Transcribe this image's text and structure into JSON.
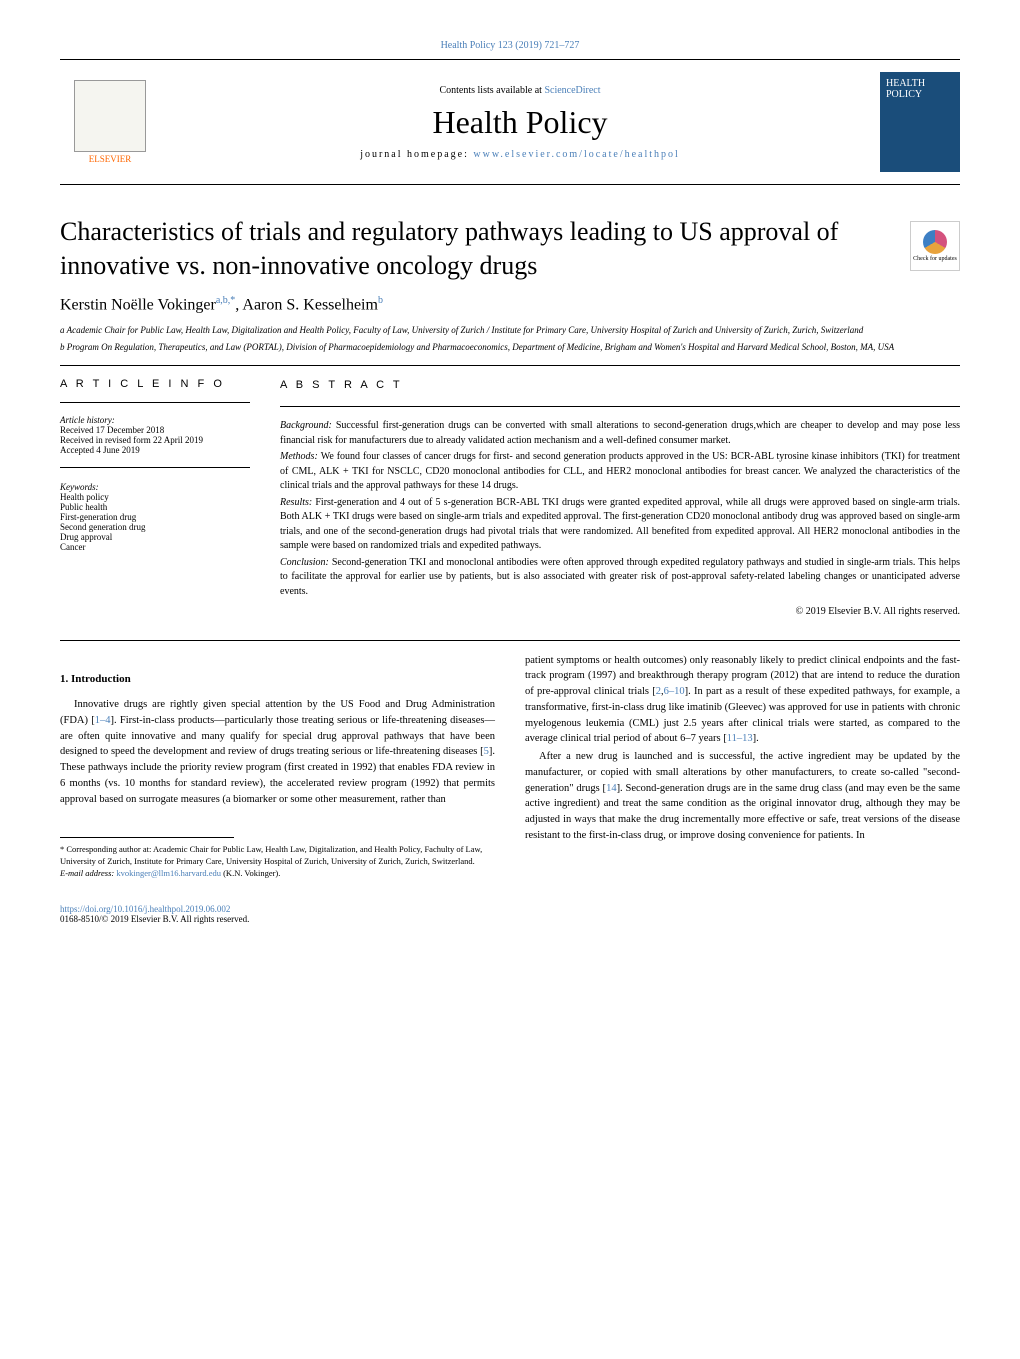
{
  "header": {
    "citation": "Health Policy 123 (2019) 721–727",
    "contents_prefix": "Contents lists available at ",
    "contents_link": "ScienceDirect",
    "journal_title": "Health Policy",
    "homepage_prefix": "journal homepage: ",
    "homepage_url": "www.elsevier.com/locate/healthpol",
    "publisher_name": "ELSEVIER",
    "cover_text": "HEALTH POLICY"
  },
  "article": {
    "title": "Characteristics of trials and regulatory pathways leading to US approval of innovative vs. non-innovative oncology drugs",
    "check_updates": "Check for updates",
    "authors_html": "Kerstin Noëlle Vokinger",
    "author1_affil": "a,b,",
    "author1_corr": "*",
    "author2": ", Aaron S. Kesselheim",
    "author2_affil": "b",
    "affiliation_a": "a Academic Chair for Public Law, Health Law, Digitalization and Health Policy, Faculty of Law, University of Zurich / Institute for Primary Care, University Hospital of Zurich and University of Zurich, Zurich, Switzerland",
    "affiliation_b": "b Program On Regulation, Therapeutics, and Law (PORTAL), Division of Pharmacoepidemiology and Pharmacoeconomics, Department of Medicine, Brigham and Women's Hospital and Harvard Medical School, Boston, MA, USA"
  },
  "info": {
    "heading": "A R T I C L E   I N F O",
    "history_label": "Article history:",
    "received": "Received 17 December 2018",
    "revised": "Received in revised form 22 April 2019",
    "accepted": "Accepted 4 June 2019",
    "keywords_label": "Keywords:",
    "keywords": [
      "Health policy",
      "Public health",
      "First-generation drug",
      "Second generation drug",
      "Drug approval",
      "Cancer"
    ]
  },
  "abstract": {
    "heading": "A B S T R A C T",
    "background_label": "Background: ",
    "background": "Successful first-generation drugs can be converted with small alterations to second-generation drugs,which are cheaper to develop and may pose less financial risk for manufacturers due to already validated action mechanism and a well-defined consumer market.",
    "methods_label": "Methods: ",
    "methods": "We found four classes of cancer drugs for first- and second generation products approved in the US: BCR-ABL tyrosine kinase inhibitors (TKI) for treatment of CML, ALK + TKI for NSCLC, CD20 monoclonal antibodies for CLL, and HER2 monoclonal antibodies for breast cancer. We analyzed the characteristics of the clinical trials and the approval pathways for these 14 drugs.",
    "results_label": "Results: ",
    "results": "First-generation and 4 out of 5 s-generation BCR-ABL TKI drugs were granted expedited approval, while all drugs were approved based on single-arm trials. Both ALK + TKI drugs were based on single-arm trials and expedited approval. The first-generation CD20 monoclonal antibody drug was approved based on single-arm trials, and one of the second-generation drugs had pivotal trials that were randomized. All benefited from expedited approval. All HER2 monoclonal antibodies in the sample were based on randomized trials and expedited pathways.",
    "conclusion_label": "Conclusion: ",
    "conclusion": "Second-generation TKI and monoclonal antibodies were often approved through expedited regulatory pathways and studied in single-arm trials. This helps to facilitate the approval for earlier use by patients, but is also associated with greater risk of post-approval safety-related labeling changes or unanticipated adverse events.",
    "copyright": "© 2019 Elsevier B.V. All rights reserved."
  },
  "body": {
    "intro_heading": "1.  Introduction",
    "col1_p1a": "Innovative drugs are rightly given special attention by the US Food and Drug Administration (FDA) [",
    "col1_p1_ref1": "1–4",
    "col1_p1b": "]. First-in-class products—particularly those treating serious or life-threatening diseases—are often quite innovative and many qualify for special drug approval pathways that have been designed to speed the development and review of drugs treating serious or life-threatening diseases [",
    "col1_p1_ref2": "5",
    "col1_p1c": "]. These pathways include the priority review program (first created in 1992) that enables FDA review in 6 months (vs. 10 months for standard review), the accelerated review program (1992) that permits approval based on surrogate measures (a biomarker or some other measurement, rather than",
    "col2_p1a": "patient symptoms or health outcomes) only reasonably likely to predict clinical endpoints and the fast-track program (1997) and breakthrough therapy program (2012) that are intend to reduce the duration of pre-approval clinical trials [",
    "col2_p1_ref1": "2",
    "col2_p1b": ",",
    "col2_p1_ref2": "6–10",
    "col2_p1c": "]. In part as a result of these expedited pathways, for example, a transformative, first-in-class drug like imatinib (Gleevec) was approved for use in patients with chronic myelogenous leukemia (CML) just 2.5 years after clinical trials were started, as compared to the average clinical trial period of about 6–7 years [",
    "col2_p1_ref3": "11–13",
    "col2_p1d": "].",
    "col2_p2a": "After a new drug is launched and is successful, the active ingredient may be updated by the manufacturer, or copied with small alterations by other manufacturers, to create so-called \"second-generation\" drugs [",
    "col2_p2_ref1": "14",
    "col2_p2b": "]. Second-generation drugs are in the same drug class (and may even be the same active ingredient) and treat the same condition as the original innovator drug, although they may be adjusted in ways that make the drug incrementally more effective or safe, treat versions of the disease resistant to the first-in-class drug, or improve dosing convenience for patients. In"
  },
  "footnote": {
    "corr": "* Corresponding author at: Academic Chair for Public Law, Health Law, Digitalization, and Health Policy, Fachulty of Law, University of Zurich, Institute for Primary Care, University Hospital of Zurich, University of Zurich, Zurich, Switzerland.",
    "email_label": "E-mail address: ",
    "email": "kvokinger@llm16.harvard.edu",
    "email_suffix": " (K.N. Vokinger)."
  },
  "footer": {
    "doi": "https://doi.org/10.1016/j.healthpol.2019.06.002",
    "issn": "0168-8510/© 2019 Elsevier B.V. All rights reserved."
  },
  "colors": {
    "link": "#4a7fb8",
    "elsevier": "#ff6600",
    "cover": "#1a4d7a"
  }
}
